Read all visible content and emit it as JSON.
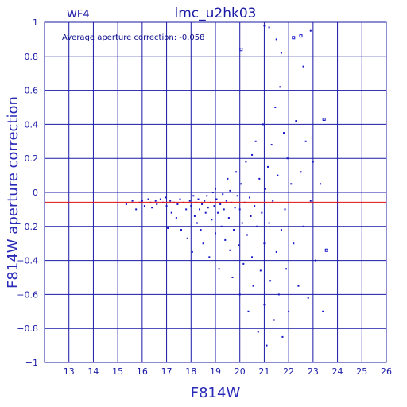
{
  "chart_data": {
    "type": "scatter",
    "title": "lmc_u2hk03",
    "chip_label": "WF4",
    "xlabel": "F814W",
    "ylabel": "F814W aperture correction",
    "annotation": "Average aperture correction: -0.058",
    "xlim": [
      12,
      26
    ],
    "ylim": [
      -1,
      1
    ],
    "x_ticks": [
      13,
      14,
      15,
      16,
      17,
      18,
      19,
      20,
      21,
      22,
      23,
      24,
      25,
      26
    ],
    "y_ticks": [
      -1,
      -0.8,
      -0.6,
      -0.4,
      -0.2,
      0,
      0.2,
      0.4,
      0.6,
      0.8,
      1
    ],
    "y_tick_labels": [
      "−1",
      "−0.8",
      "−0.6",
      "−0.4",
      "−0.2",
      "0",
      "0.2",
      "0.4",
      "0.6",
      "0.8",
      "1"
    ],
    "grid": true,
    "reference_line": {
      "y": -0.058,
      "color": "#e01010"
    },
    "colors": {
      "axes": "#1a1aa6",
      "points": "#1515c8",
      "reference": "#e01010"
    },
    "outlier_squares": [
      [
        20.05,
        0.84
      ],
      [
        22.2,
        0.91
      ],
      [
        23.45,
        0.43
      ],
      [
        23.55,
        -0.34
      ],
      [
        22.5,
        0.92
      ]
    ],
    "series": [
      {
        "points": [
          [
            15.35,
            -0.07
          ],
          [
            15.6,
            -0.05
          ],
          [
            15.75,
            -0.1
          ],
          [
            15.9,
            -0.06
          ],
          [
            16.0,
            -0.05
          ],
          [
            16.1,
            -0.08
          ],
          [
            16.25,
            -0.04
          ],
          [
            16.35,
            -0.06
          ],
          [
            16.4,
            -0.09
          ],
          [
            16.55,
            -0.05
          ],
          [
            16.6,
            -0.07
          ],
          [
            16.75,
            -0.04
          ],
          [
            16.85,
            -0.06
          ],
          [
            16.95,
            -0.03
          ],
          [
            17.0,
            -0.08
          ],
          [
            17.05,
            -0.21
          ],
          [
            17.15,
            -0.05
          ],
          [
            17.2,
            -0.12
          ],
          [
            17.3,
            -0.06
          ],
          [
            17.4,
            -0.15
          ],
          [
            17.45,
            -0.07
          ],
          [
            17.55,
            -0.04
          ],
          [
            17.6,
            -0.22
          ],
          [
            17.7,
            -0.06
          ],
          [
            17.8,
            -0.1
          ],
          [
            17.85,
            -0.27
          ],
          [
            17.95,
            -0.05
          ],
          [
            18.0,
            -0.08
          ],
          [
            18.05,
            -0.35
          ],
          [
            18.1,
            -0.02
          ],
          [
            18.15,
            -0.14
          ],
          [
            18.2,
            -0.06
          ],
          [
            18.25,
            -0.18
          ],
          [
            18.3,
            -0.04
          ],
          [
            18.35,
            -0.1
          ],
          [
            18.4,
            -0.22
          ],
          [
            18.45,
            -0.07
          ],
          [
            18.5,
            -0.3
          ],
          [
            18.55,
            -0.05
          ],
          [
            18.6,
            -0.12
          ],
          [
            18.65,
            -0.02
          ],
          [
            18.7,
            -0.09
          ],
          [
            18.75,
            -0.38
          ],
          [
            18.8,
            -0.06
          ],
          [
            18.85,
            -0.16
          ],
          [
            18.9,
            0.0
          ],
          [
            18.95,
            -0.08
          ],
          [
            19.0,
            -0.24
          ],
          [
            19.0,
            0.02
          ],
          [
            19.05,
            -0.04
          ],
          [
            19.1,
            -0.12
          ],
          [
            19.15,
            -0.45
          ],
          [
            19.2,
            -0.07
          ],
          [
            19.25,
            -0.2
          ],
          [
            19.3,
            -0.01
          ],
          [
            19.35,
            -0.1
          ],
          [
            19.4,
            -0.28
          ],
          [
            19.45,
            -0.05
          ],
          [
            19.5,
            0.08
          ],
          [
            19.55,
            -0.15
          ],
          [
            19.6,
            -0.34
          ],
          [
            19.6,
            0.01
          ],
          [
            19.65,
            -0.06
          ],
          [
            19.7,
            -0.5
          ],
          [
            19.75,
            -0.22
          ],
          [
            19.8,
            -0.09
          ],
          [
            19.85,
            0.12
          ],
          [
            19.9,
            -0.02
          ],
          [
            19.95,
            -0.31
          ],
          [
            20.0,
            -0.1
          ],
          [
            20.0,
            -0.6
          ],
          [
            20.05,
            0.05
          ],
          [
            20.1,
            -0.18
          ],
          [
            20.15,
            -0.42
          ],
          [
            20.2,
            -0.06
          ],
          [
            20.25,
            0.18
          ],
          [
            20.3,
            -0.25
          ],
          [
            20.35,
            -0.7
          ],
          [
            20.4,
            -0.03
          ],
          [
            20.45,
            -0.14
          ],
          [
            20.5,
            0.22
          ],
          [
            20.5,
            -0.38
          ],
          [
            20.55,
            -0.55
          ],
          [
            20.6,
            -0.08
          ],
          [
            20.65,
            0.3
          ],
          [
            20.7,
            -0.2
          ],
          [
            20.75,
            -0.82
          ],
          [
            20.8,
            0.08
          ],
          [
            20.85,
            -0.46
          ],
          [
            20.9,
            -0.12
          ],
          [
            20.95,
            0.4
          ],
          [
            21.0,
            -0.3
          ],
          [
            21.0,
            -0.66
          ],
          [
            21.05,
            0.02
          ],
          [
            21.1,
            -0.9
          ],
          [
            21.15,
            0.15
          ],
          [
            21.2,
            -0.18
          ],
          [
            21.25,
            -0.52
          ],
          [
            21.3,
            0.28
          ],
          [
            21.35,
            -0.05
          ],
          [
            21.4,
            -0.75
          ],
          [
            21.45,
            0.5
          ],
          [
            21.5,
            -0.35
          ],
          [
            21.55,
            0.1
          ],
          [
            21.6,
            -0.6
          ],
          [
            21.65,
            0.62
          ],
          [
            21.7,
            -0.22
          ],
          [
            21.75,
            -0.85
          ],
          [
            21.8,
            0.35
          ],
          [
            21.85,
            -0.1
          ],
          [
            21.9,
            -0.45
          ],
          [
            21.95,
            0.2
          ],
          [
            22.0,
            -0.7
          ],
          [
            22.1,
            0.05
          ],
          [
            22.2,
            -0.3
          ],
          [
            22.3,
            0.42
          ],
          [
            22.4,
            -0.55
          ],
          [
            22.5,
            0.12
          ],
          [
            22.6,
            -0.2
          ],
          [
            22.7,
            0.3
          ],
          [
            22.8,
            -0.62
          ],
          [
            22.9,
            -0.05
          ],
          [
            23.0,
            0.18
          ],
          [
            23.1,
            -0.4
          ],
          [
            23.3,
            0.05
          ],
          [
            23.4,
            -0.7
          ],
          [
            21.0,
            0.98
          ],
          [
            21.2,
            0.97
          ],
          [
            22.9,
            0.95
          ],
          [
            22.6,
            0.74
          ],
          [
            21.7,
            0.82
          ],
          [
            21.5,
            0.9
          ]
        ]
      }
    ]
  }
}
